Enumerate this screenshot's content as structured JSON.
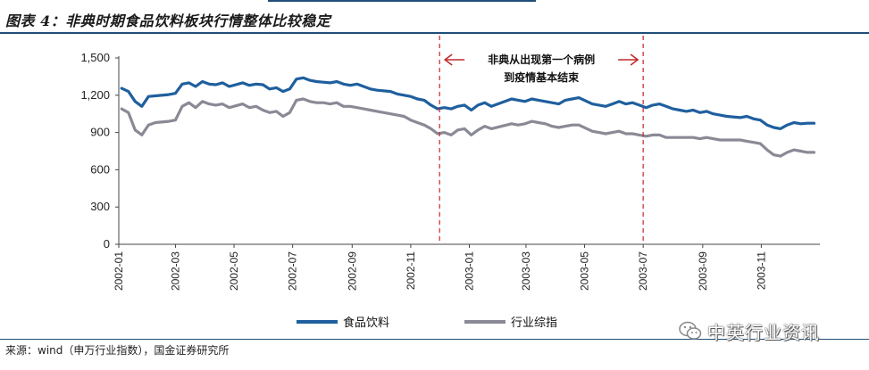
{
  "header": {
    "title": "图表 4：非典时期食品饮料板块行情整体比较稳定"
  },
  "footer": {
    "source": "来源：wind（申万行业指数），国金证券研究所"
  },
  "watermark": {
    "text": "中英行业资讯",
    "icon": "wechat-icon"
  },
  "colors": {
    "food_beverage": "#1f5f9e",
    "industry_composite": "#8a8a96",
    "annotation": "#c0282a",
    "rule": "#1f4e79"
  },
  "chart_data": {
    "type": "line",
    "title": "",
    "xlabel": "",
    "ylabel": "",
    "ylim": [
      0,
      1500
    ],
    "yticks": [
      "0",
      "300",
      "600",
      "900",
      "1,200",
      "1,500"
    ],
    "yticks_values": [
      0,
      300,
      600,
      900,
      1200,
      1500
    ],
    "xticks": [
      "2002-01",
      "2002-03",
      "2002-05",
      "2002-07",
      "2002-09",
      "2002-11",
      "2003-01",
      "2003-03",
      "2003-05",
      "2003-07",
      "2003-09",
      "2003-11"
    ],
    "grid": false,
    "legend_position": "bottom",
    "x": [
      "2002-01-04",
      "2002-01-11",
      "2002-01-18",
      "2002-01-25",
      "2002-02-01",
      "2002-02-08",
      "2002-02-22",
      "2002-03-01",
      "2002-03-08",
      "2002-03-15",
      "2002-03-22",
      "2002-03-29",
      "2002-04-05",
      "2002-04-12",
      "2002-04-19",
      "2002-04-26",
      "2002-05-10",
      "2002-05-17",
      "2002-05-24",
      "2002-05-31",
      "2002-06-07",
      "2002-06-14",
      "2002-06-21",
      "2002-06-28",
      "2002-07-05",
      "2002-07-12",
      "2002-07-19",
      "2002-07-26",
      "2002-08-02",
      "2002-08-09",
      "2002-08-16",
      "2002-08-23",
      "2002-08-30",
      "2002-09-06",
      "2002-09-13",
      "2002-09-20",
      "2002-09-27",
      "2002-10-11",
      "2002-10-18",
      "2002-10-25",
      "2002-11-01",
      "2002-11-08",
      "2002-11-15",
      "2002-11-22",
      "2002-11-29",
      "2002-12-06",
      "2002-12-13",
      "2002-12-20",
      "2002-12-27",
      "2003-01-03",
      "2003-01-10",
      "2003-01-17",
      "2003-01-24",
      "2003-02-14",
      "2003-02-21",
      "2003-02-28",
      "2003-03-07",
      "2003-03-14",
      "2003-03-21",
      "2003-03-28",
      "2003-04-04",
      "2003-04-11",
      "2003-04-18",
      "2003-04-25",
      "2003-05-09",
      "2003-05-16",
      "2003-05-23",
      "2003-05-30",
      "2003-06-06",
      "2003-06-13",
      "2003-06-20",
      "2003-06-27",
      "2003-07-04",
      "2003-07-11",
      "2003-07-18",
      "2003-07-25",
      "2003-08-01",
      "2003-08-08",
      "2003-08-15",
      "2003-08-22",
      "2003-08-29",
      "2003-09-05",
      "2003-09-12",
      "2003-09-19",
      "2003-09-26",
      "2003-10-10",
      "2003-10-17",
      "2003-10-24",
      "2003-10-31",
      "2003-11-07",
      "2003-11-14",
      "2003-11-21",
      "2003-11-28",
      "2003-12-05",
      "2003-12-12",
      "2003-12-19",
      "2003-12-26"
    ],
    "series": [
      {
        "name": "食品饮料",
        "color": "#1f5f9e",
        "values": [
          1255,
          1230,
          1150,
          1110,
          1190,
          1195,
          1205,
          1215,
          1290,
          1300,
          1270,
          1310,
          1290,
          1285,
          1300,
          1270,
          1300,
          1280,
          1290,
          1285,
          1250,
          1260,
          1230,
          1250,
          1330,
          1340,
          1320,
          1310,
          1305,
          1300,
          1310,
          1290,
          1280,
          1290,
          1270,
          1250,
          1240,
          1230,
          1210,
          1200,
          1190,
          1170,
          1160,
          1120,
          1090,
          1100,
          1090,
          1110,
          1120,
          1080,
          1120,
          1140,
          1110,
          1170,
          1160,
          1150,
          1170,
          1160,
          1150,
          1140,
          1130,
          1160,
          1170,
          1180,
          1130,
          1120,
          1110,
          1130,
          1150,
          1130,
          1140,
          1120,
          1100,
          1120,
          1130,
          1110,
          1090,
          1080,
          1070,
          1080,
          1060,
          1070,
          1050,
          1040,
          1030,
          1020,
          1030,
          1010,
          1000,
          960,
          940,
          930,
          960,
          980,
          970,
          975,
          975
        ]
      },
      {
        "name": "行业综指",
        "color": "#8a8a96",
        "values": [
          1090,
          1060,
          920,
          880,
          960,
          980,
          990,
          1000,
          1110,
          1140,
          1100,
          1150,
          1130,
          1120,
          1130,
          1100,
          1130,
          1100,
          1110,
          1080,
          1060,
          1070,
          1030,
          1060,
          1160,
          1170,
          1150,
          1140,
          1140,
          1130,
          1140,
          1110,
          1110,
          1100,
          1090,
          1080,
          1070,
          1050,
          1040,
          1030,
          1000,
          980,
          960,
          930,
          890,
          900,
          880,
          920,
          930,
          880,
          920,
          950,
          930,
          970,
          960,
          970,
          990,
          980,
          970,
          950,
          940,
          950,
          960,
          960,
          910,
          900,
          890,
          900,
          910,
          890,
          890,
          880,
          870,
          880,
          880,
          860,
          860,
          860,
          860,
          860,
          850,
          860,
          850,
          840,
          840,
          840,
          830,
          820,
          810,
          760,
          720,
          710,
          740,
          760,
          750,
          740,
          740
        ]
      }
    ],
    "annotation": {
      "label_line1": "非典从出现第一个病例",
      "label_line2": "到疫情基本结束",
      "start": "2002-12-01",
      "end": "2003-07-01"
    }
  }
}
